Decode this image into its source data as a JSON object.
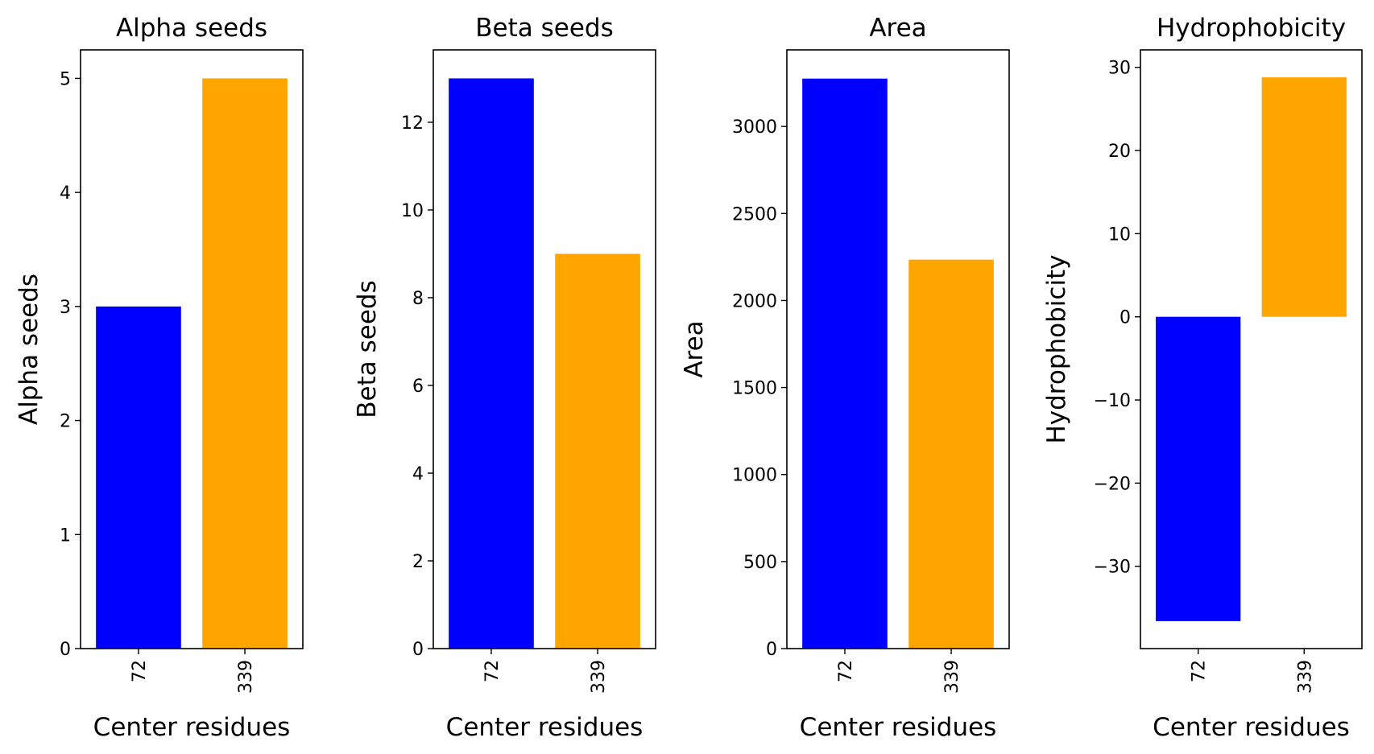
{
  "chart_data": [
    {
      "type": "bar",
      "title": "Alpha seeds",
      "xlabel": "Center residues",
      "ylabel": "Alpha seeds",
      "categories": [
        "72",
        "339"
      ],
      "values": [
        3,
        5
      ],
      "colors": [
        "#0000ff",
        "#ffa500"
      ],
      "ylim": [
        0,
        5.25
      ],
      "yticks": [
        0,
        1,
        2,
        3,
        4,
        5
      ],
      "ytick_labels": [
        "0",
        "1",
        "2",
        "3",
        "4",
        "5"
      ],
      "grid": false
    },
    {
      "type": "bar",
      "title": "Beta seeds",
      "xlabel": "Center residues",
      "ylabel": "Beta seeds",
      "categories": [
        "72",
        "339"
      ],
      "values": [
        13,
        9
      ],
      "colors": [
        "#0000ff",
        "#ffa500"
      ],
      "ylim": [
        0,
        13.65
      ],
      "yticks": [
        0,
        2,
        4,
        6,
        8,
        10,
        12
      ],
      "ytick_labels": [
        "0",
        "2",
        "4",
        "6",
        "8",
        "10",
        "12"
      ],
      "grid": false
    },
    {
      "type": "bar",
      "title": "Area",
      "xlabel": "Center residues",
      "ylabel": "Area",
      "categories": [
        "72",
        "339"
      ],
      "values": [
        3275,
        2235
      ],
      "colors": [
        "#0000ff",
        "#ffa500"
      ],
      "ylim": [
        0,
        3440
      ],
      "yticks": [
        0,
        500,
        1000,
        1500,
        2000,
        2500,
        3000
      ],
      "ytick_labels": [
        "0",
        "500",
        "1000",
        "1500",
        "2000",
        "2500",
        "3000"
      ],
      "grid": false
    },
    {
      "type": "bar",
      "title": "Hydrophobicity",
      "xlabel": "Center residues",
      "ylabel": "Hydrophobicity",
      "categories": [
        "72",
        "339"
      ],
      "values": [
        -36.6,
        28.8
      ],
      "colors": [
        "#0000ff",
        "#ffa500"
      ],
      "ylim": [
        -39.9,
        32.1
      ],
      "yticks": [
        -30,
        -20,
        -10,
        0,
        10,
        20,
        30
      ],
      "ytick_labels": [
        "−30",
        "−20",
        "−10",
        "0",
        "10",
        "20",
        "30"
      ],
      "grid": false
    }
  ]
}
